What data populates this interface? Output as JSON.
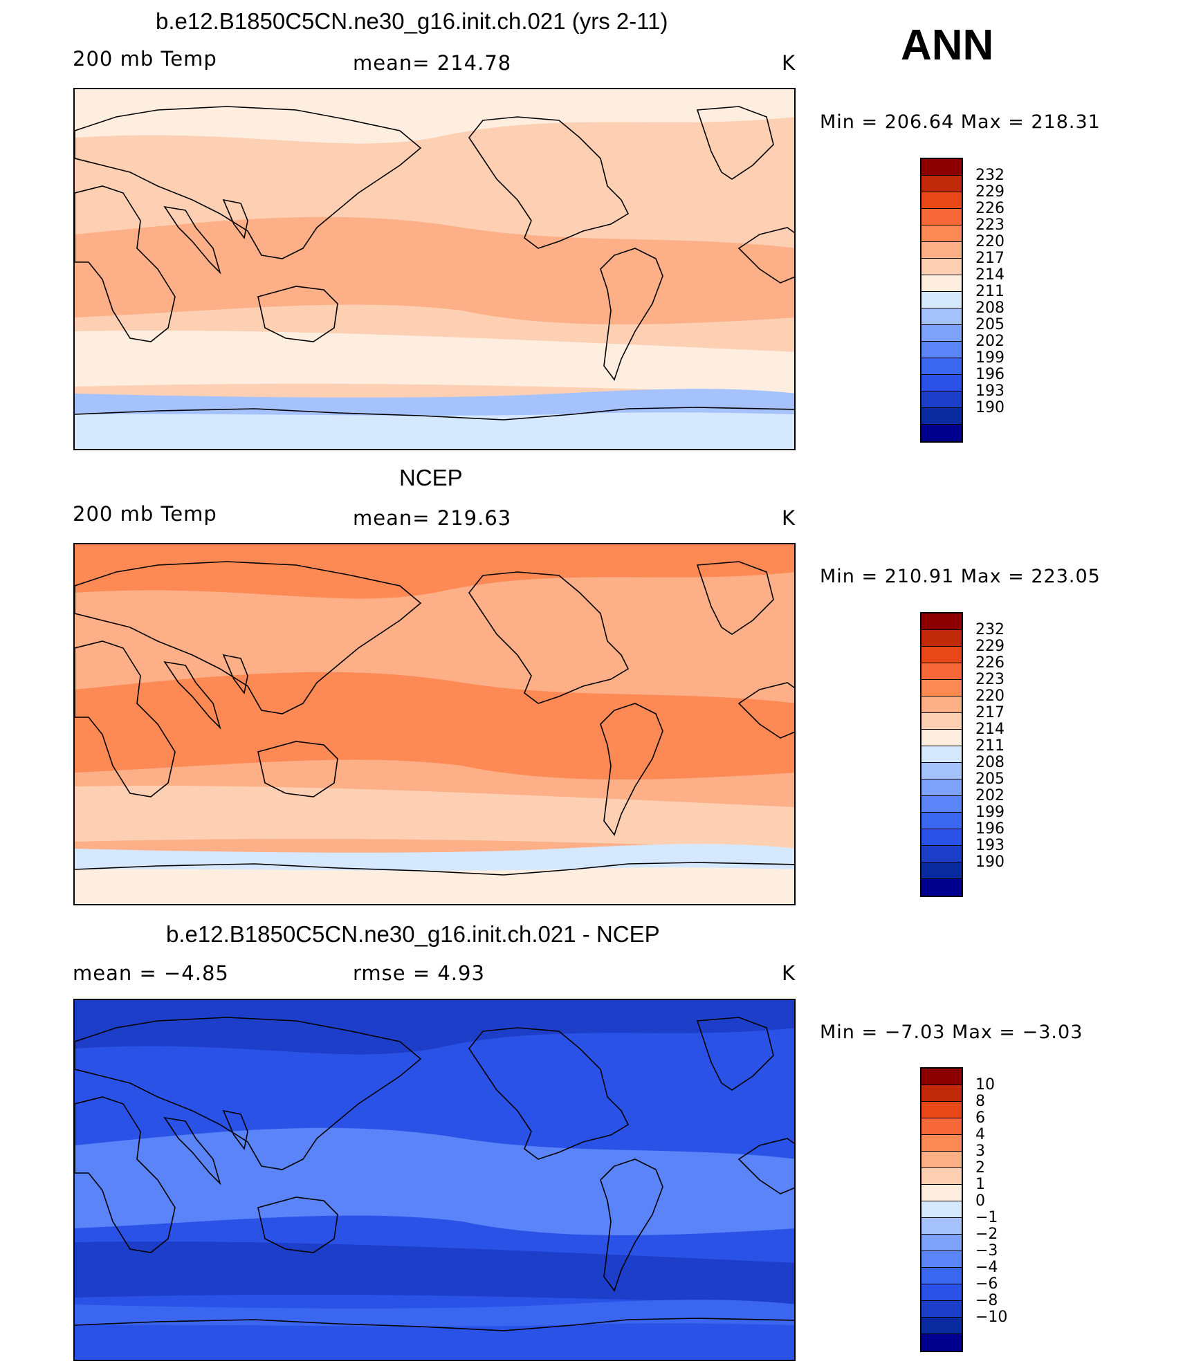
{
  "header": {
    "season": "ANN"
  },
  "colors": {
    "abs_scale": [
      "#00008c",
      "#0a2aa0",
      "#1c3ec8",
      "#2a52e6",
      "#3a66f0",
      "#5a84f8",
      "#7ea2fa",
      "#a6c2fc",
      "#d6e8fd",
      "#feeee0",
      "#fdd0b4",
      "#fdaf87",
      "#fd8a55",
      "#f76838",
      "#e84818",
      "#c02a08",
      "#8c0000"
    ],
    "diff_scale": [
      "#00008c",
      "#0a2aa0",
      "#1c3ec8",
      "#2a52e6",
      "#3a66f0",
      "#5a84f8",
      "#7ea2fa",
      "#a6c2fc",
      "#d6e8fd",
      "#feeee0",
      "#fdd0b4",
      "#fdaf87",
      "#fd8a55",
      "#f76838",
      "#e84818",
      "#c02a08",
      "#8c0000"
    ],
    "coast": "#000000"
  },
  "panels": [
    {
      "title": "b.e12.B1850C5CN.ne30_g16.init.ch.021 (yrs 2-11)",
      "left_label": "200 mb Temp",
      "center_label": "mean=  214.78",
      "units": "K",
      "minmax": "Min  =  206.64  Max  =  218.31",
      "colorbar_ticks": [
        "232",
        "229",
        "226",
        "223",
        "220",
        "217",
        "214",
        "211",
        "208",
        "205",
        "202",
        "199",
        "196",
        "193",
        "190"
      ],
      "scale": "abs_scale",
      "fill": {
        "base": "#fdd0b4",
        "polar_north": "#feeee0",
        "tropics": "#fdaf87",
        "south_band": "#feeee0",
        "antarctic": "#d6e8fd",
        "antarctic_edge": "#a6c2fc"
      }
    },
    {
      "title": "NCEP",
      "left_label": "200 mb Temp",
      "center_label": "mean=  219.63",
      "units": "K",
      "minmax": "Min  =  210.91  Max  =  223.05",
      "colorbar_ticks": [
        "232",
        "229",
        "226",
        "223",
        "220",
        "217",
        "214",
        "211",
        "208",
        "205",
        "202",
        "199",
        "196",
        "193",
        "190"
      ],
      "scale": "abs_scale",
      "fill": {
        "base": "#fdaf87",
        "polar_north": "#fd8a55",
        "tropics": "#fd8a55",
        "south_band": "#fdd0b4",
        "antarctic": "#feeee0",
        "antarctic_edge": "#d6e8fd"
      }
    },
    {
      "title": "b.e12.B1850C5CN.ne30_g16.init.ch.021 - NCEP",
      "left_label": "mean  =    −4.85",
      "center_label": "rmse  =     4.93",
      "units": "K",
      "minmax": "Min  =    −7.03  Max  =    −3.03",
      "colorbar_ticks": [
        "10",
        "8",
        "6",
        "4",
        "3",
        "2",
        "1",
        "0",
        "−1",
        "−2",
        "−3",
        "−4",
        "−6",
        "−8",
        "−10"
      ],
      "scale": "diff_scale",
      "fill": {
        "base": "#2a52e6",
        "polar_north": "#1c3ec8",
        "tropics": "#5a84f8",
        "south_band": "#1c3ec8",
        "antarctic": "#2a52e6",
        "antarctic_edge": "#3a66f0"
      }
    }
  ]
}
